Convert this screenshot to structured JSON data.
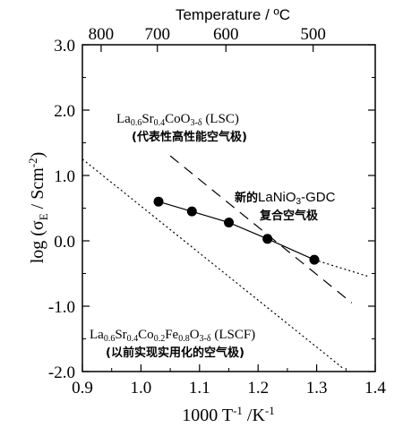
{
  "chart_data": {
    "type": "scatter",
    "xlabel": "1000 T⁻¹ /K⁻¹",
    "ylabel": "log (σE / Scm⁻²)",
    "top_axis_label": "Temperature / ºC",
    "xlim": [
      0.9,
      1.4
    ],
    "ylim": [
      -2.0,
      3.0
    ],
    "x_ticks": [
      0.9,
      1.0,
      1.1,
      1.2,
      1.3,
      1.4
    ],
    "x_tick_labels": [
      "0.9",
      "1.0",
      "1.1",
      "1.2",
      "1.3",
      "1.4"
    ],
    "y_ticks": [
      3.0,
      2.0,
      1.0,
      0.0,
      -1.0,
      -2.0
    ],
    "y_tick_labels": [
      "3.0",
      "2.0",
      "1.0",
      "0.0",
      "-1.0",
      "-2.0"
    ],
    "top_ticks": [
      {
        "label": "800",
        "x": 0.932
      },
      {
        "label": "700",
        "x": 1.028
      },
      {
        "label": "600",
        "x": 1.145
      },
      {
        "label": "500",
        "x": 1.294
      }
    ],
    "series": [
      {
        "name": "新的LaNiO3-GDC复合空气极",
        "style": "markers-solid-line",
        "x": [
          1.03,
          1.087,
          1.15,
          1.216,
          1.296
        ],
        "y": [
          0.6,
          0.45,
          0.28,
          0.03,
          -0.29
        ],
        "extension": {
          "x": [
            1.296,
            1.39
          ],
          "y": [
            -0.29,
            -0.55
          ]
        }
      },
      {
        "name": "La0.6Sr0.4CoO3-δ (LSC)",
        "style": "dashed",
        "x": [
          1.05,
          1.36
        ],
        "y": [
          1.3,
          -0.95
        ]
      },
      {
        "name": "La0.6Sr0.4Co0.2Fe0.8O3-δ (LSCF)",
        "style": "dotted",
        "x": [
          0.9,
          1.345
        ],
        "y": [
          1.25,
          -1.95
        ]
      }
    ]
  },
  "annotations": {
    "lsc_label": "La0.6Sr0.4CoO3-δ (LSC)",
    "lsc_note": "(代表性高性能空气极)",
    "new_label_1": "新的LaNiO3-GDC",
    "new_label_2": "复合空气极",
    "lscf_label": "La0.6Sr0.4Co0.2Fe0.8O3-δ (LSCF)",
    "lscf_note": "(以前实现实用化的空气极)"
  },
  "colors": {
    "ink": "#000000",
    "background": "#ffffff"
  }
}
